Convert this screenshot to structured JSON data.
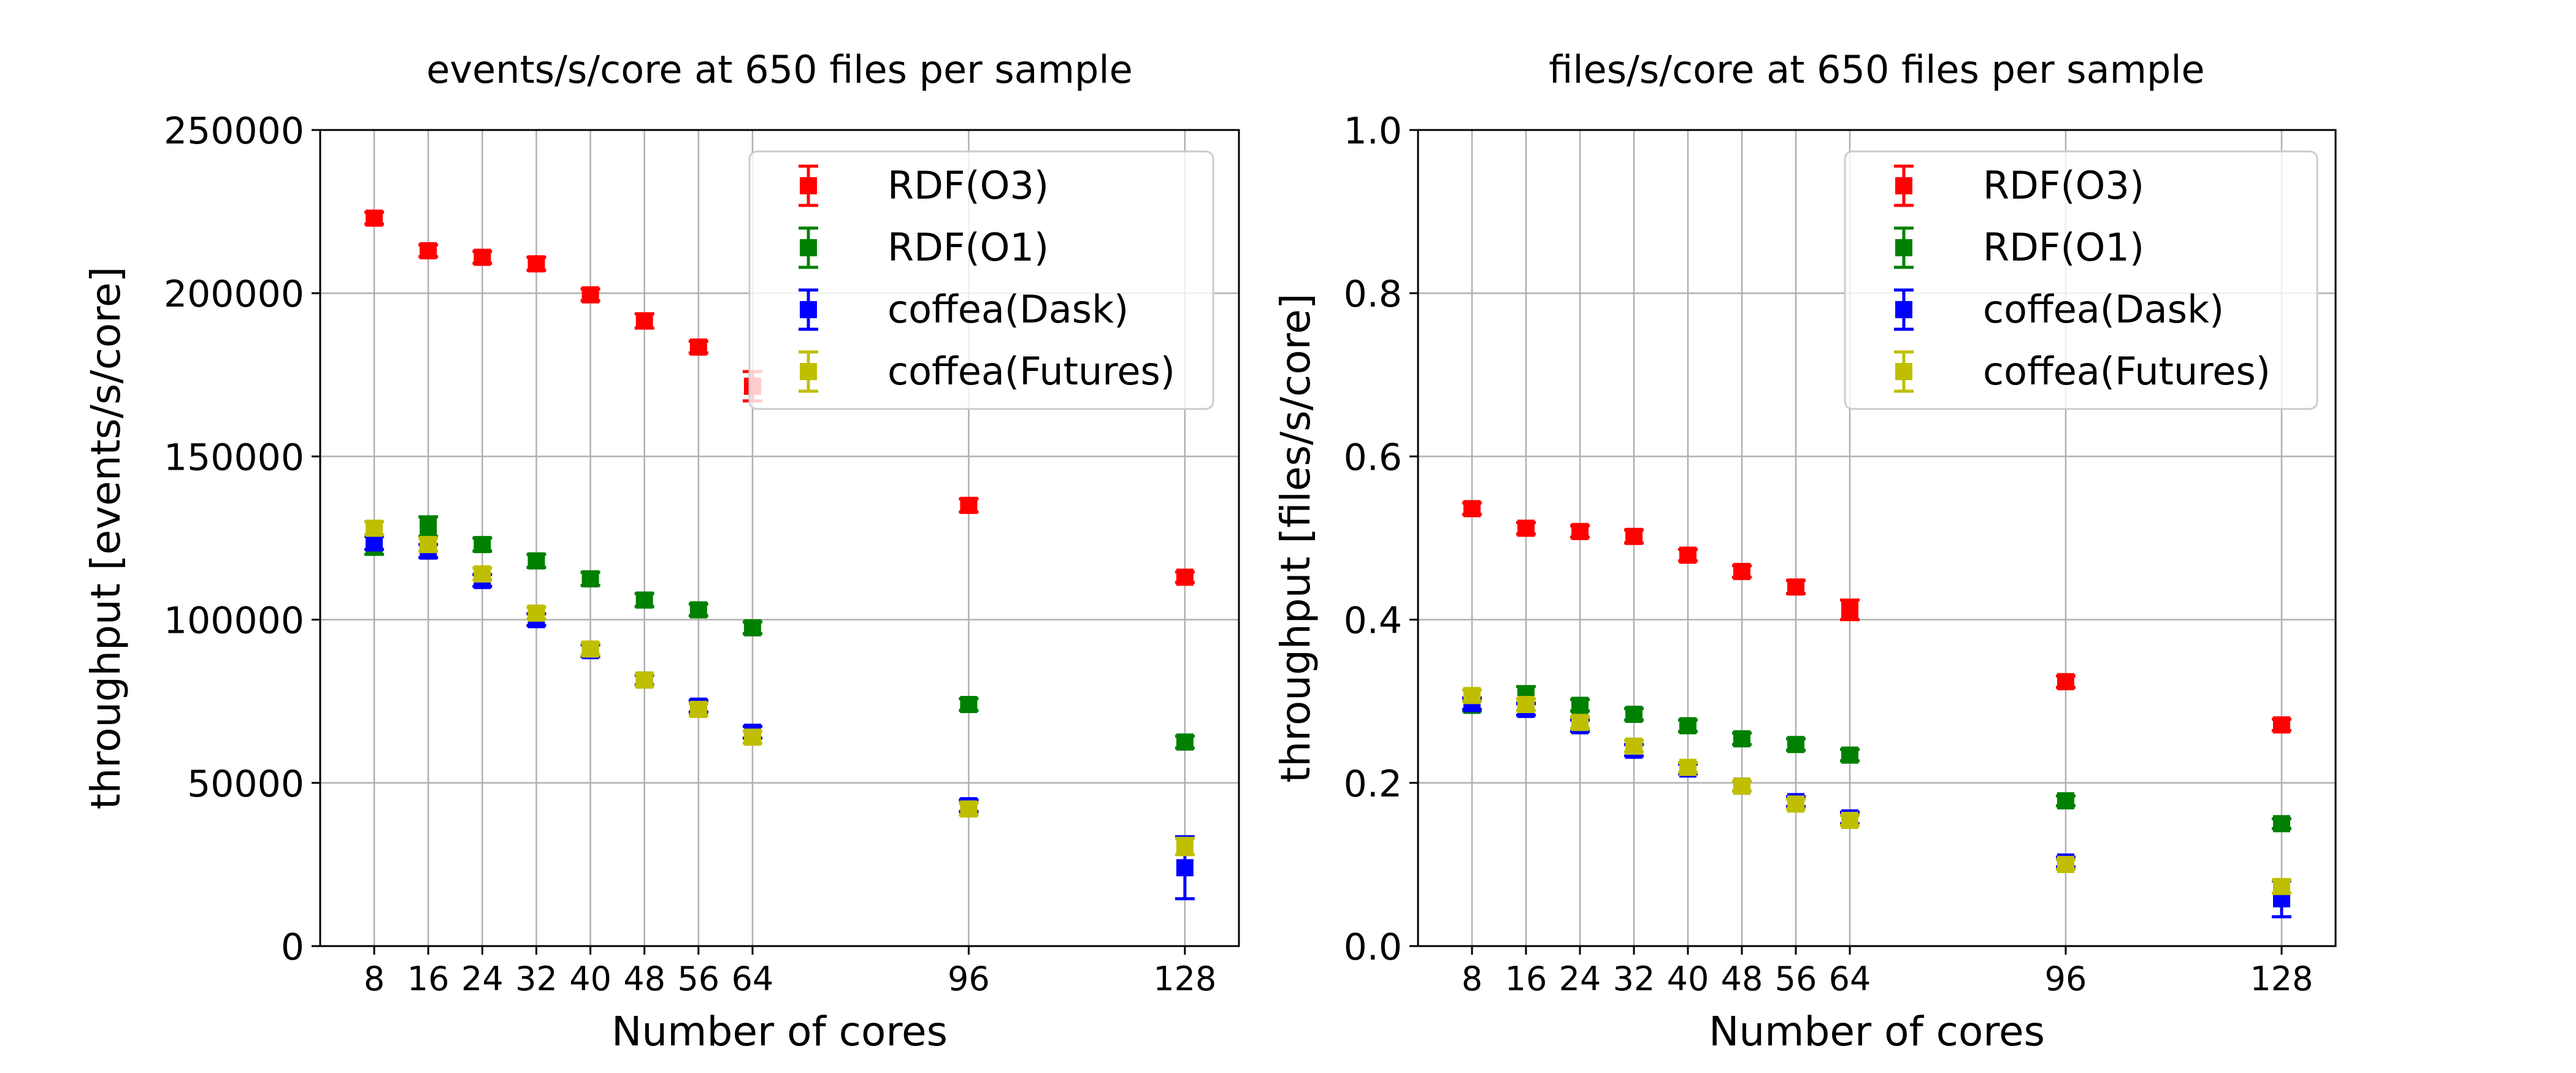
{
  "chart_data": [
    {
      "type": "scatter",
      "title": "events/s/core at 650 files per sample",
      "xlabel": "Number of cores",
      "ylabel": "throughput [events/s/core]",
      "x_ticks": [
        "8",
        "16",
        "24",
        "32",
        "40",
        "48",
        "56",
        "64",
        "96",
        "128"
      ],
      "y_ticks": [
        "0",
        "50000",
        "100000",
        "150000",
        "200000",
        "250000"
      ],
      "xlim": [
        0,
        136
      ],
      "ylim": [
        0,
        250000
      ],
      "grid": true,
      "legend_position": "top-right",
      "series": [
        {
          "name": "RDF(O3)",
          "color": "#ff0000",
          "x": [
            8,
            16,
            24,
            32,
            40,
            48,
            56,
            64,
            96,
            128
          ],
          "y": [
            223000,
            213000,
            211000,
            209000,
            199500,
            191500,
            183500,
            171500,
            135000,
            113000
          ],
          "err": [
            1800,
            1800,
            1800,
            2000,
            1800,
            2200,
            1800,
            4500,
            2000,
            1600
          ]
        },
        {
          "name": "RDF(O1)",
          "color": "#008000",
          "x": [
            8,
            16,
            24,
            32,
            40,
            48,
            56,
            64,
            96,
            128
          ],
          "y": [
            123000,
            128500,
            123000,
            118000,
            112500,
            106000,
            103000,
            97500,
            74000,
            62500
          ],
          "err": [
            3000,
            3000,
            2000,
            2000,
            2000,
            2000,
            1800,
            1800,
            1800,
            1800
          ]
        },
        {
          "name": "coffea(Dask)",
          "color": "#0000ff",
          "x": [
            8,
            16,
            24,
            32,
            40,
            48,
            56,
            64,
            96,
            128
          ],
          "y": [
            123500,
            121000,
            112000,
            100000,
            90500,
            81500,
            73500,
            65500,
            43000,
            24000
          ],
          "err": [
            2000,
            2000,
            1800,
            1800,
            1800,
            1500,
            1800,
            1800,
            1800,
            9500
          ]
        },
        {
          "name": "coffea(Futures)",
          "color": "#bfbf00",
          "x": [
            8,
            16,
            24,
            32,
            40,
            48,
            56,
            64,
            96,
            128
          ],
          "y": [
            128000,
            123000,
            114000,
            102000,
            91000,
            81500,
            72500,
            64000,
            42000,
            30500
          ],
          "err": [
            2000,
            2000,
            1800,
            1800,
            1800,
            1800,
            1800,
            1800,
            1800,
            2500
          ]
        }
      ]
    },
    {
      "type": "scatter",
      "title": "files/s/core at 650 files per sample",
      "xlabel": "Number of cores",
      "ylabel": "throughput [files/s/core]",
      "x_ticks": [
        "8",
        "16",
        "24",
        "32",
        "40",
        "48",
        "56",
        "64",
        "96",
        "128"
      ],
      "y_ticks": [
        "0.0",
        "0.2",
        "0.4",
        "0.6",
        "0.8",
        "1.0"
      ],
      "xlim": [
        0,
        136
      ],
      "ylim": [
        0,
        1.0
      ],
      "grid": true,
      "legend_position": "top-right",
      "series": [
        {
          "name": "RDF(O3)",
          "color": "#ff0000",
          "x": [
            8,
            16,
            24,
            32,
            40,
            48,
            56,
            64,
            96,
            128
          ],
          "y": [
            0.536,
            0.512,
            0.508,
            0.502,
            0.479,
            0.459,
            0.44,
            0.412,
            0.324,
            0.271
          ],
          "err": [
            0.007,
            0.007,
            0.007,
            0.008,
            0.007,
            0.007,
            0.008,
            0.012,
            0.007,
            0.007
          ]
        },
        {
          "name": "RDF(O1)",
          "color": "#008000",
          "x": [
            8,
            16,
            24,
            32,
            40,
            48,
            56,
            64,
            96,
            128
          ],
          "y": [
            0.295,
            0.308,
            0.295,
            0.284,
            0.27,
            0.254,
            0.247,
            0.234,
            0.178,
            0.15
          ],
          "err": [
            0.007,
            0.01,
            0.007,
            0.007,
            0.007,
            0.007,
            0.007,
            0.007,
            0.006,
            0.006
          ]
        },
        {
          "name": "coffea(Dask)",
          "color": "#0000ff",
          "x": [
            8,
            16,
            24,
            32,
            40,
            48,
            56,
            64,
            96,
            128
          ],
          "y": [
            0.297,
            0.29,
            0.27,
            0.24,
            0.217,
            0.196,
            0.177,
            0.157,
            0.103,
            0.058
          ],
          "err": [
            0.007,
            0.007,
            0.007,
            0.007,
            0.006,
            0.006,
            0.006,
            0.007,
            0.006,
            0.022
          ]
        },
        {
          "name": "coffea(Futures)",
          "color": "#bfbf00",
          "x": [
            8,
            16,
            24,
            32,
            40,
            48,
            56,
            64,
            96,
            128
          ],
          "y": [
            0.307,
            0.296,
            0.274,
            0.245,
            0.219,
            0.196,
            0.174,
            0.154,
            0.1,
            0.073
          ],
          "err": [
            0.007,
            0.007,
            0.007,
            0.007,
            0.006,
            0.006,
            0.006,
            0.006,
            0.006,
            0.008
          ]
        }
      ]
    }
  ]
}
